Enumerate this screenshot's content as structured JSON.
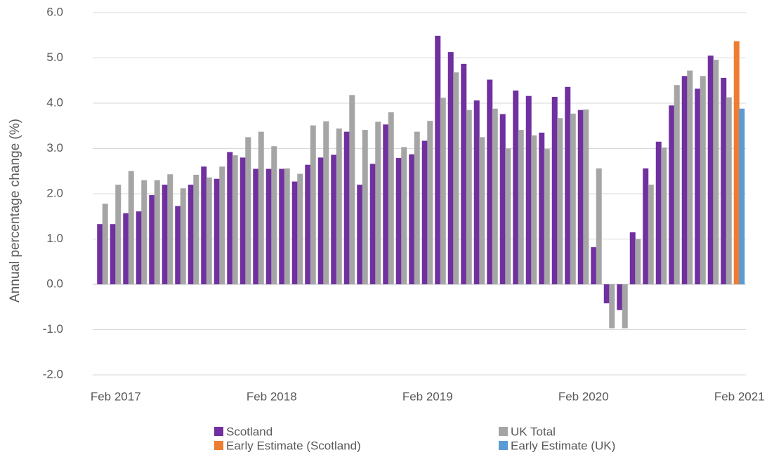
{
  "chart_data": {
    "type": "bar",
    "y_label": "Annual percentage change (%)",
    "categories": [
      null,
      "Feb 2017",
      null,
      null,
      null,
      null,
      null,
      null,
      null,
      null,
      null,
      null,
      null,
      "Feb 2018",
      null,
      null,
      null,
      null,
      null,
      null,
      null,
      null,
      null,
      null,
      null,
      "Feb 2019",
      null,
      null,
      null,
      null,
      null,
      null,
      null,
      null,
      null,
      null,
      null,
      "Feb 2020",
      null,
      null,
      null,
      null,
      null,
      null,
      null,
      null,
      null,
      null,
      null,
      "Feb 2021"
    ],
    "series": [
      {
        "name": "Scotland",
        "color": "#7030a0",
        "values": [
          1.33,
          1.33,
          1.57,
          1.61,
          1.97,
          2.2,
          1.73,
          2.2,
          2.6,
          2.33,
          2.92,
          2.8,
          2.55,
          2.55,
          2.55,
          2.27,
          2.64,
          2.8,
          2.86,
          3.37,
          2.2,
          2.66,
          3.53,
          2.79,
          2.87,
          3.17,
          5.49,
          5.13,
          4.87,
          4.06,
          4.52,
          3.76,
          4.28,
          4.16,
          3.35,
          4.14,
          4.36,
          3.85,
          0.82,
          -0.42,
          -0.57,
          1.15,
          2.56,
          3.15,
          3.95,
          4.6,
          4.32,
          5.05,
          4.56,
          null
        ]
      },
      {
        "name": "UK Total",
        "color": "#a5a5a5",
        "values": [
          1.78,
          2.2,
          2.5,
          2.3,
          2.3,
          2.43,
          2.12,
          2.42,
          2.36,
          2.6,
          2.85,
          3.25,
          3.37,
          3.05,
          2.56,
          2.44,
          3.51,
          3.6,
          3.44,
          4.18,
          3.41,
          3.59,
          3.8,
          3.03,
          3.37,
          3.61,
          4.12,
          4.68,
          3.85,
          3.25,
          3.88,
          3.0,
          3.41,
          3.29,
          2.99,
          3.67,
          3.77,
          3.86,
          2.56,
          -0.97,
          -0.97,
          1.0,
          2.2,
          3.02,
          4.4,
          4.72,
          4.6,
          4.96,
          4.13,
          null
        ]
      },
      {
        "name": "Early Estimate (Scotland)",
        "color": "#ed7d31",
        "values": [
          null,
          null,
          null,
          null,
          null,
          null,
          null,
          null,
          null,
          null,
          null,
          null,
          null,
          null,
          null,
          null,
          null,
          null,
          null,
          null,
          null,
          null,
          null,
          null,
          null,
          null,
          null,
          null,
          null,
          null,
          null,
          null,
          null,
          null,
          null,
          null,
          null,
          null,
          null,
          null,
          null,
          null,
          null,
          null,
          null,
          null,
          null,
          null,
          null,
          5.37
        ]
      },
      {
        "name": "Early Estimate (UK)",
        "color": "#5b9bd5",
        "values": [
          null,
          null,
          null,
          null,
          null,
          null,
          null,
          null,
          null,
          null,
          null,
          null,
          null,
          null,
          null,
          null,
          null,
          null,
          null,
          null,
          null,
          null,
          null,
          null,
          null,
          null,
          null,
          null,
          null,
          null,
          null,
          null,
          null,
          null,
          null,
          null,
          null,
          null,
          null,
          null,
          null,
          null,
          null,
          null,
          null,
          null,
          null,
          null,
          null,
          3.88
        ]
      }
    ],
    "ylim": [
      -2,
      6
    ],
    "yticks": [
      {
        "value": -2,
        "label": "-2.0"
      },
      {
        "value": -1,
        "label": "-1.0"
      },
      {
        "value": 0,
        "label": "0.0"
      },
      {
        "value": 1,
        "label": "1.0"
      },
      {
        "value": 2,
        "label": "2.0"
      },
      {
        "value": 3,
        "label": "3.0"
      },
      {
        "value": 4,
        "label": "4.0"
      },
      {
        "value": 5,
        "label": "5.0"
      },
      {
        "value": 6,
        "label": "6.0"
      }
    ],
    "grid": true,
    "legend": "bottom"
  }
}
